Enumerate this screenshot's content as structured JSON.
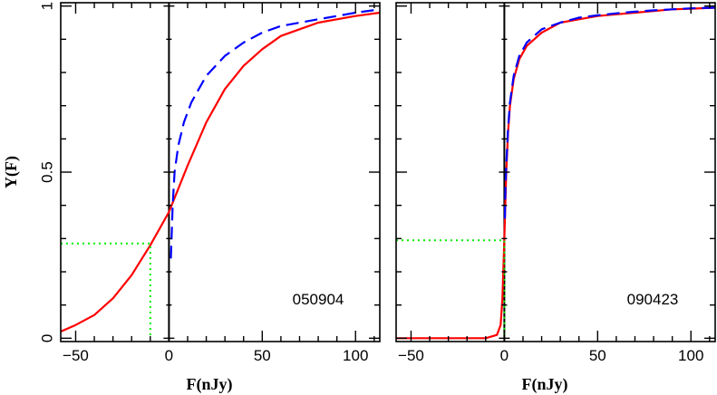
{
  "chart_data": [
    {
      "type": "line",
      "panel_label": "050904",
      "xlabel": "F(nJy)",
      "ylabel": "Y(F)",
      "xlim": [
        -58,
        113
      ],
      "ylim": [
        -0.01,
        1.01
      ],
      "x_ticks": [
        -50,
        0,
        50,
        100
      ],
      "y_ticks": [
        0,
        0.5,
        1
      ],
      "y_tick_labels": [
        "0",
        "0.5",
        "1"
      ],
      "legend": "none",
      "grid": false,
      "series": [
        {
          "style": "solid",
          "color": "#ff0000",
          "x": [
            -58,
            -50,
            -40,
            -30,
            -20,
            -10,
            0,
            10,
            20,
            30,
            40,
            50,
            60,
            70,
            80,
            90,
            100,
            113
          ],
          "y": [
            0.02,
            0.04,
            0.07,
            0.12,
            0.19,
            0.28,
            0.38,
            0.52,
            0.65,
            0.75,
            0.82,
            0.87,
            0.91,
            0.93,
            0.95,
            0.96,
            0.97,
            0.98
          ]
        },
        {
          "style": "dashed",
          "color": "#0000ff",
          "x": [
            1,
            2,
            3,
            5,
            8,
            12,
            16,
            20,
            30,
            40,
            50,
            60,
            70,
            80,
            90,
            100,
            113
          ],
          "y": [
            0.24,
            0.4,
            0.5,
            0.58,
            0.65,
            0.71,
            0.75,
            0.79,
            0.85,
            0.89,
            0.92,
            0.94,
            0.95,
            0.96,
            0.97,
            0.98,
            0.99
          ]
        },
        {
          "style": "dotted",
          "color": "#00ee00",
          "x": [
            -58,
            -10,
            -10
          ],
          "y": [
            0.285,
            0.285,
            0
          ]
        }
      ]
    },
    {
      "type": "line",
      "panel_label": "090423",
      "xlabel": "F(nJy)",
      "ylabel": "",
      "xlim": [
        -58,
        113
      ],
      "ylim": [
        -0.01,
        1.01
      ],
      "x_ticks": [
        -50,
        0,
        50,
        100
      ],
      "y_ticks": [
        0,
        0.5,
        1
      ],
      "y_tick_labels": [],
      "legend": "none",
      "grid": false,
      "series": [
        {
          "style": "solid",
          "color": "#ff0000",
          "x": [
            -58,
            -10,
            -4,
            -2,
            -1,
            0,
            1,
            2,
            3,
            5,
            8,
            12,
            20,
            30,
            40,
            50,
            60,
            70,
            80,
            90,
            100,
            113
          ],
          "y": [
            0,
            0,
            0.01,
            0.04,
            0.12,
            0.3,
            0.5,
            0.62,
            0.7,
            0.78,
            0.84,
            0.88,
            0.92,
            0.95,
            0.96,
            0.97,
            0.975,
            0.98,
            0.985,
            0.99,
            0.992,
            0.995
          ]
        },
        {
          "style": "dashed",
          "color": "#0000ff",
          "x": [
            0.3,
            0.6,
            1,
            2,
            3,
            5,
            8,
            12,
            20,
            30,
            40,
            50,
            60,
            70,
            80,
            90,
            100,
            113
          ],
          "y": [
            0.36,
            0.45,
            0.52,
            0.63,
            0.71,
            0.79,
            0.85,
            0.89,
            0.93,
            0.95,
            0.965,
            0.972,
            0.978,
            0.983,
            0.987,
            0.99,
            0.993,
            0.995
          ]
        },
        {
          "style": "dotted",
          "color": "#00ee00",
          "x": [
            -58,
            0,
            0
          ],
          "y": [
            0.295,
            0.295,
            0
          ]
        }
      ]
    }
  ]
}
